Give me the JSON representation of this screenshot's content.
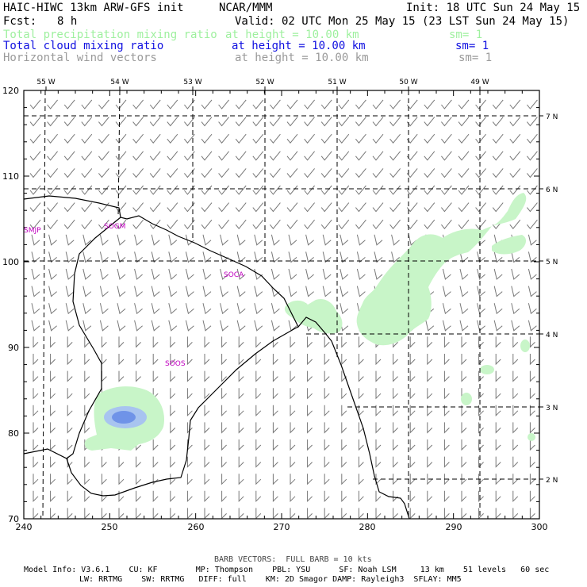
{
  "header": {
    "title": "HAIC-HIWC 13km ARW-GFS init",
    "org": "NCAR/MMM",
    "init": "Init: 18 UTC Sun 24 May 15",
    "fcst_label": "Fcst:",
    "fcst_value": "8 h",
    "valid": "Valid: 02 UTC Mon 25 May 15 (23 LST Sun 24 May 15)",
    "fields": [
      {
        "name": "Total precipitation mixing ratio",
        "height": "at height = 10.00 km",
        "sm": "sm= 1",
        "color": "#9ef09e"
      },
      {
        "name": "Total cloud mixing ratio",
        "height": "at height = 10.00 km",
        "sm": "sm= 1",
        "color": "#1010e0"
      },
      {
        "name": "Horizontal wind vectors",
        "height": "at height = 10.00 km",
        "sm": "sm= 1",
        "color": "#9a9a9a"
      }
    ]
  },
  "map": {
    "x_ticks": [
      "240",
      "250",
      "260",
      "270",
      "280",
      "290",
      "300"
    ],
    "y_ticks": [
      "70",
      "80",
      "90",
      "100",
      "110",
      "120"
    ],
    "lon_labels": [
      "55 W",
      "54 W",
      "53 W",
      "52 W",
      "51 W",
      "50 W",
      "49 W"
    ],
    "lat_labels": [
      "7 N",
      "6 N",
      "5 N",
      "4 N",
      "3 N",
      "2 N"
    ],
    "stations": [
      "SMJP",
      "SOGM",
      "SOCA",
      "SOOS"
    ],
    "colors": {
      "precip": "#c8f5c8",
      "cloud": "#a8c4f0",
      "cloud_core": "#6f93e8",
      "coast": "#000000",
      "barb": "#777777"
    }
  },
  "footer": {
    "barb_note": "BARB VECTORS:  FULL BARB = 10 kts",
    "line1": "Model Info: V3.6.1    CU: KF        MP: Thompson    PBL: YSU      SF: Noah LSM     13 km    51 levels   60 sec",
    "line2": "LW: RRTMG    SW: RRTMG   DIFF: full    KM: 2D Smagor DAMP: Rayleigh3  SFLAY: MM5"
  }
}
